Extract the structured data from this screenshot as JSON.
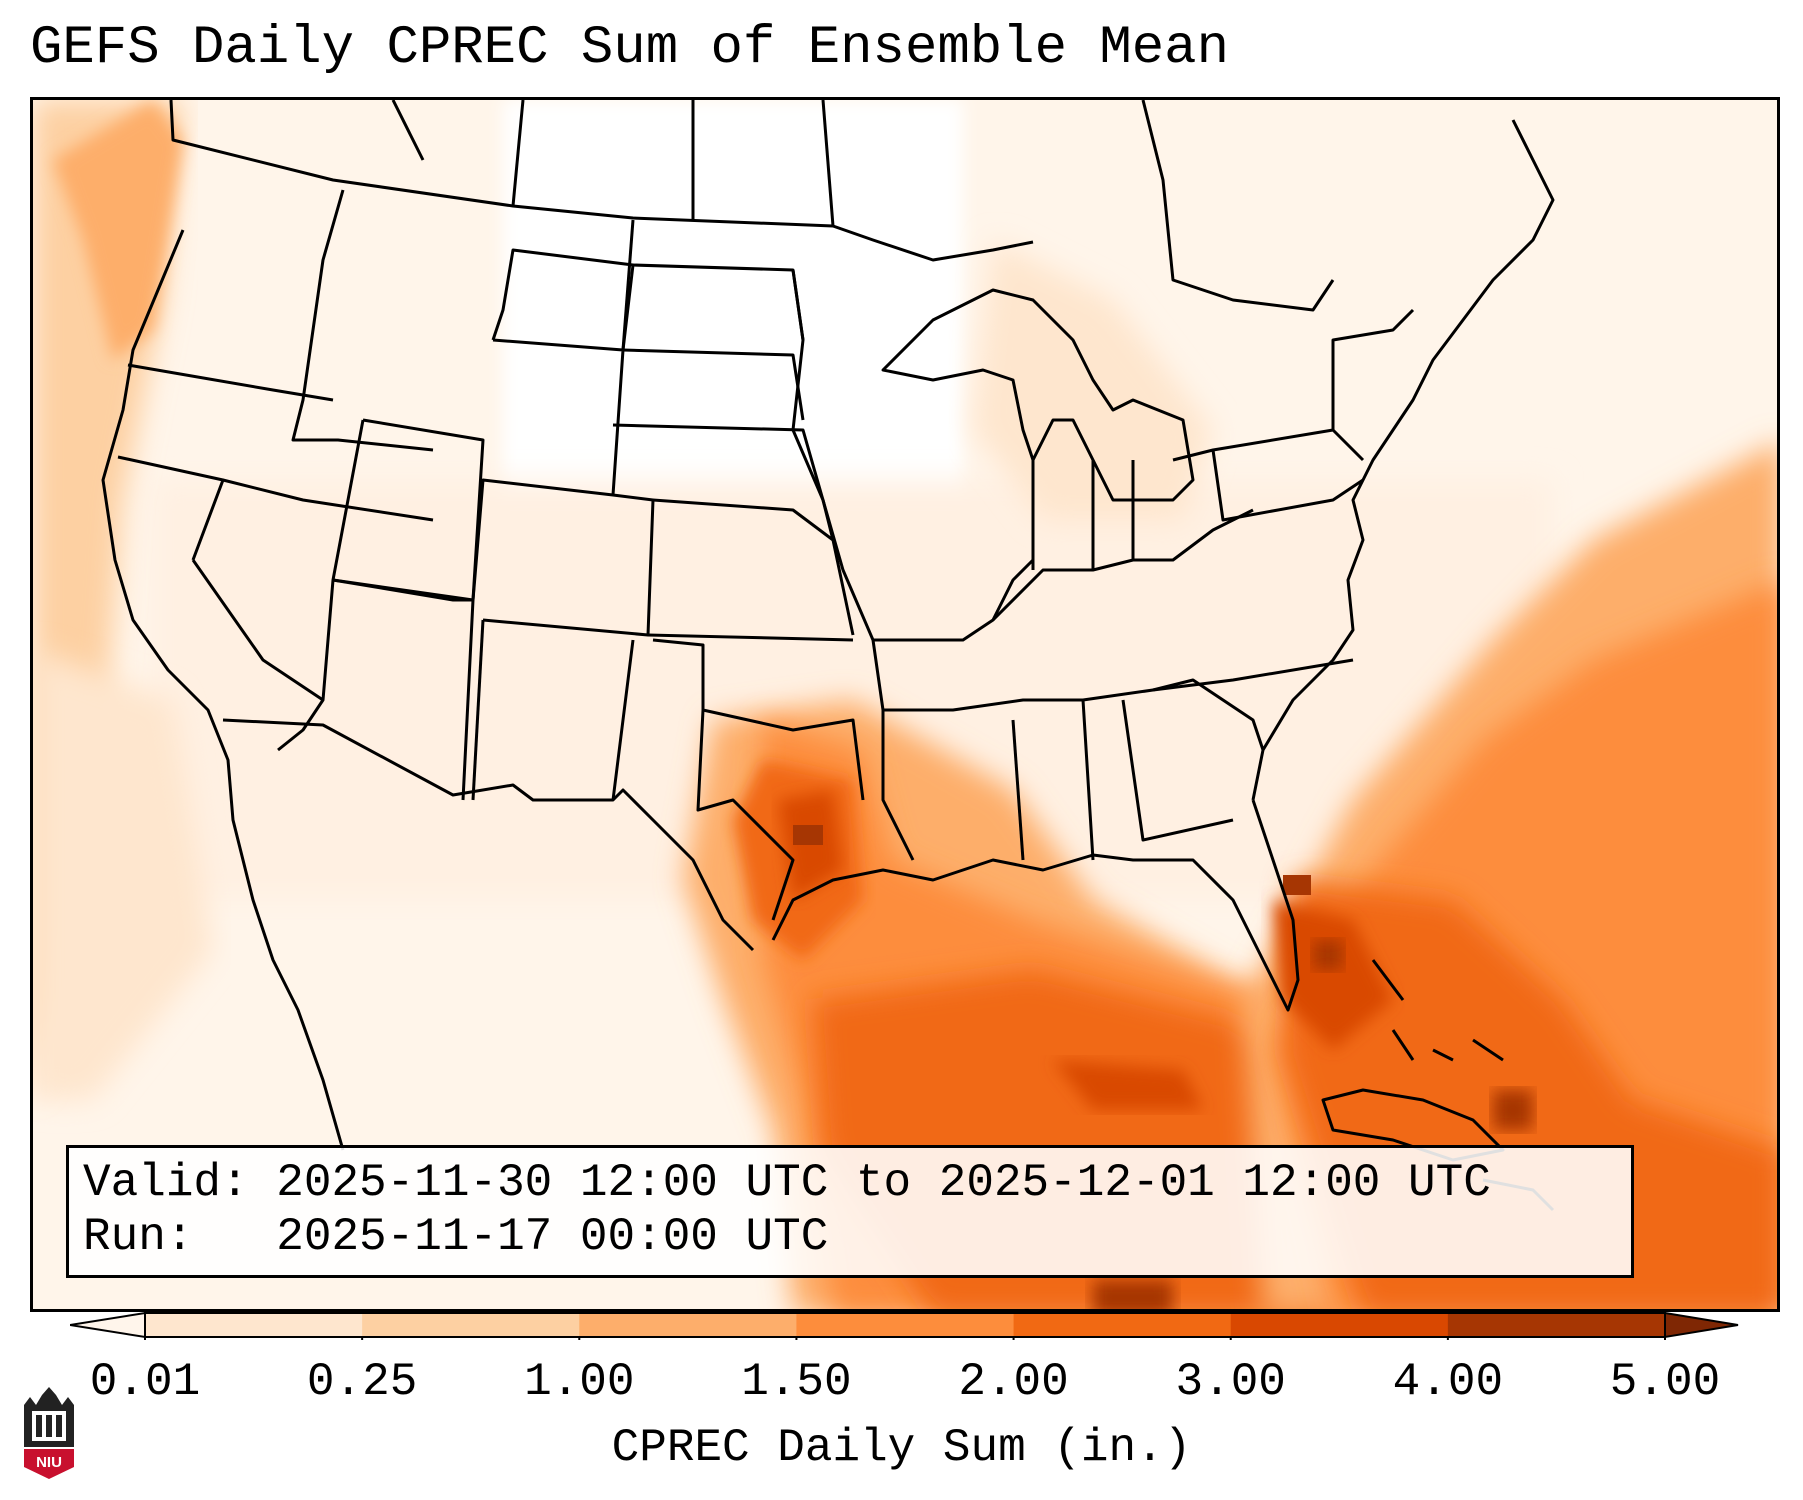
{
  "title": "GEFS Daily CPREC Sum of Ensemble Mean",
  "info": {
    "valid_line": "Valid: 2025-11-30 12:00 UTC to 2025-12-01 12:00 UTC",
    "run_line": "Run:   2025-11-17 00:00 UTC"
  },
  "colorbar": {
    "label": "CPREC Daily Sum (in.)",
    "ticks": [
      "0.01",
      "0.25",
      "1.00",
      "1.50",
      "2.00",
      "3.00",
      "4.00",
      "5.00"
    ],
    "colors": [
      "#fff5eb",
      "#fee6ce",
      "#fdd0a2",
      "#fdae6b",
      "#fd8d3c",
      "#f16913",
      "#d94801",
      "#a63603",
      "#7f2704"
    ]
  },
  "logo": {
    "text": "NIU",
    "color": "#c8102e"
  }
}
